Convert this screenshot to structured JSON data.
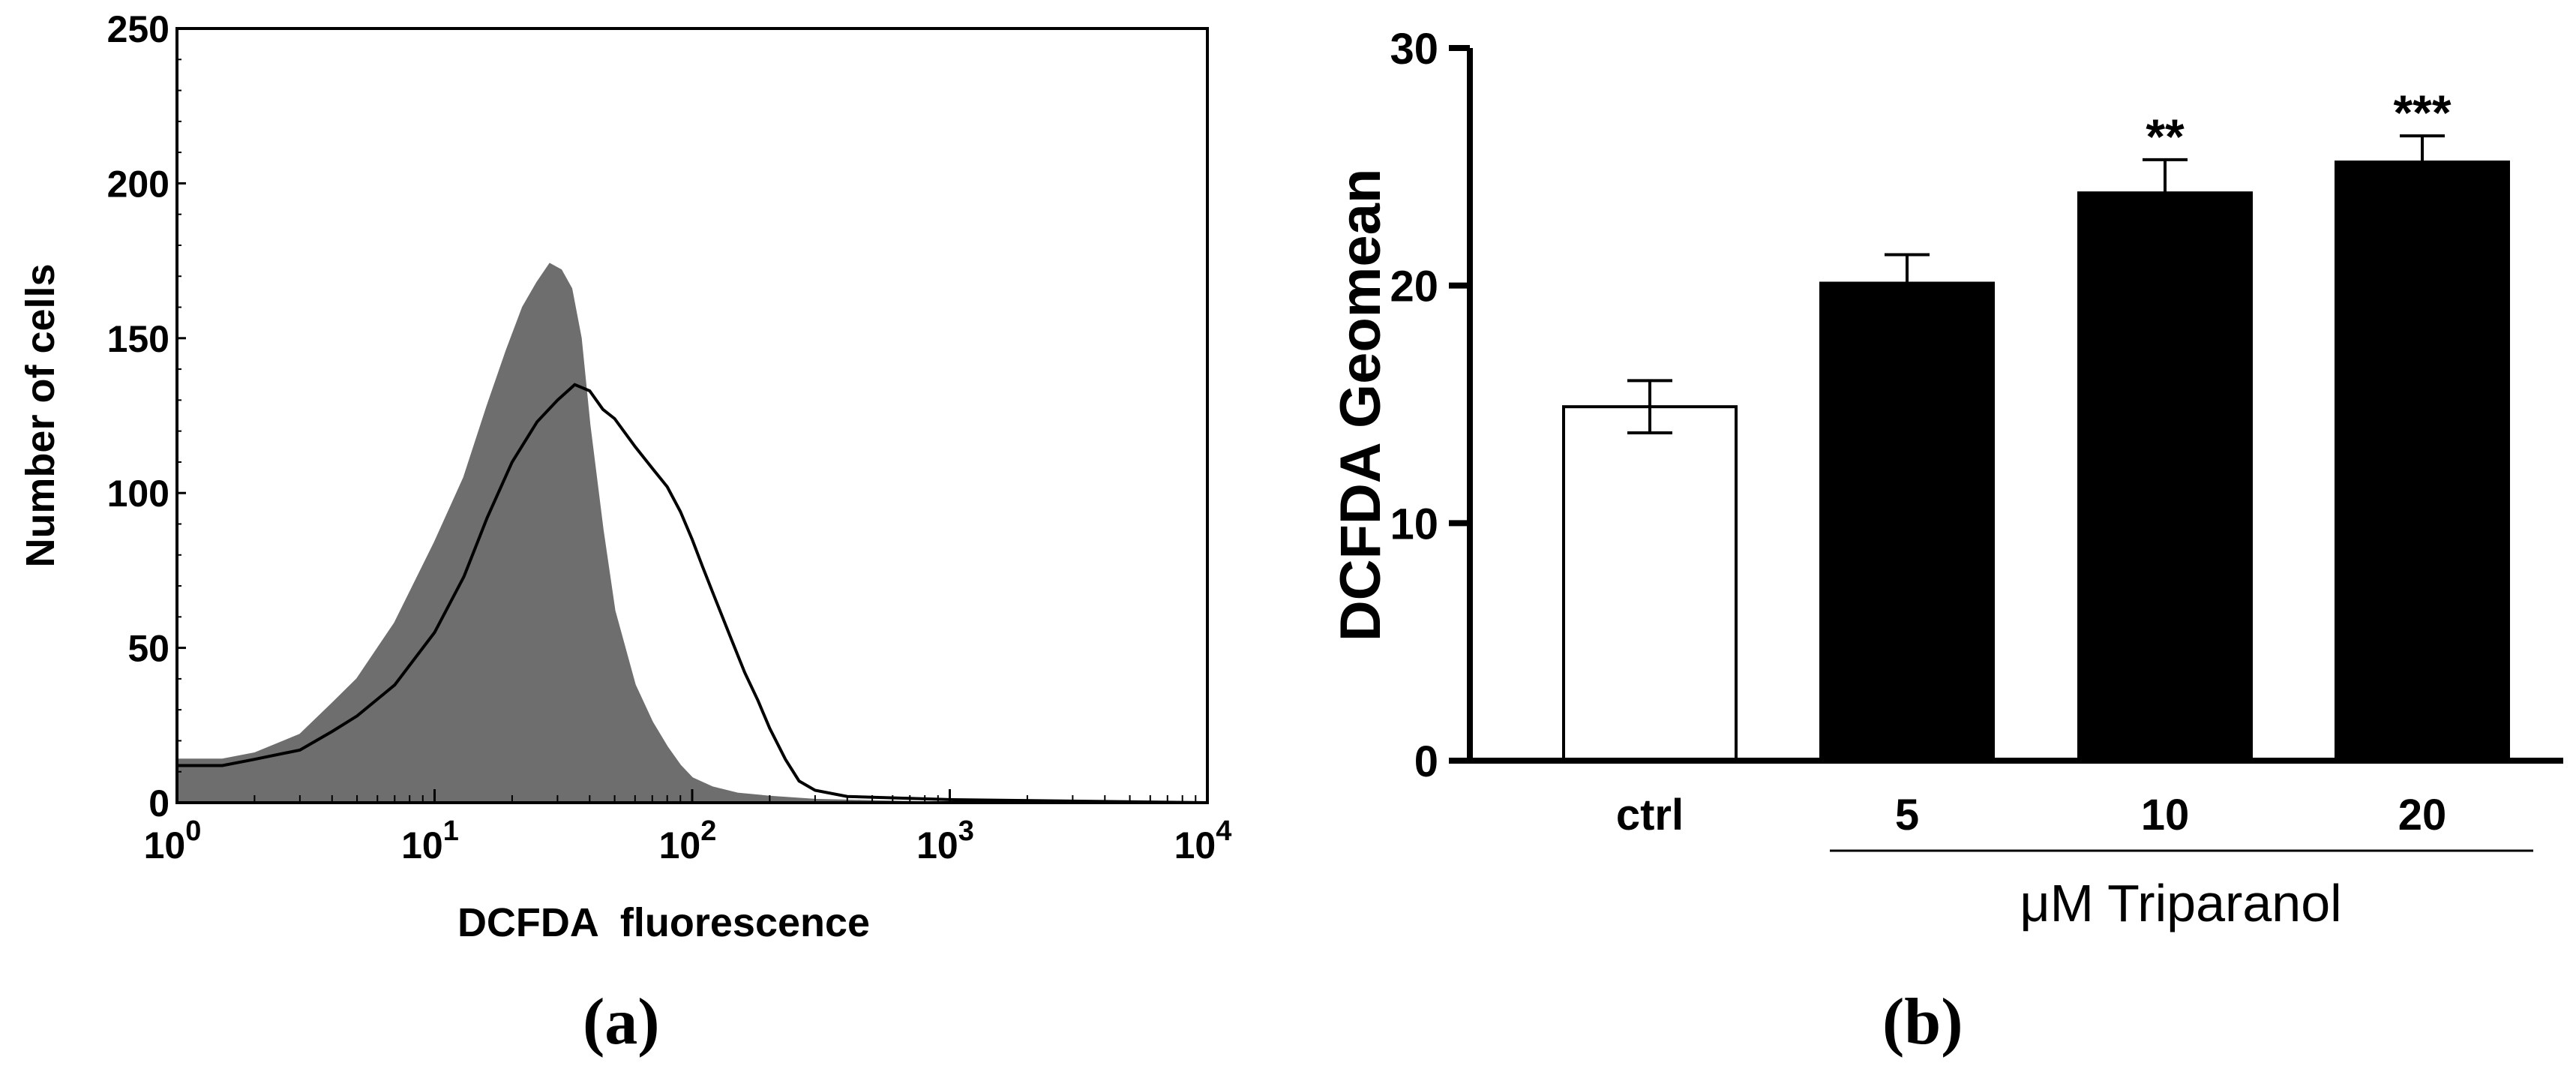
{
  "panel_a": {
    "label": "(a)",
    "xlabel": "DCFDA  fluorescence",
    "ylabel": "Number of cells",
    "yticks": [
      "0",
      "50",
      "100",
      "150",
      "200",
      "250"
    ],
    "xticks": [
      {
        "base": "10",
        "exp": "0"
      },
      {
        "base": "10",
        "exp": "1"
      },
      {
        "base": "10",
        "exp": "2"
      },
      {
        "base": "10",
        "exp": "3"
      },
      {
        "base": "10",
        "exp": "4"
      }
    ]
  },
  "panel_b": {
    "label": "(b)",
    "ylabel": "DCFDA Geomean",
    "group_label": "μM Triparanol",
    "yticks": [
      "0",
      "10",
      "20",
      "30"
    ]
  },
  "chart_data": [
    {
      "type": "area",
      "xscale": "log",
      "xlim": [
        1,
        10000
      ],
      "ylim": [
        0,
        250
      ],
      "xlabel": "DCFDA  fluorescence",
      "ylabel": "Number of cells",
      "grid": false,
      "colors": {
        "filled": "#6e6e6e",
        "outline": "#000000"
      },
      "series": [
        {
          "style": "filled gray histogram",
          "x": [
            1,
            1.5,
            2,
            3,
            4,
            5,
            7,
            10,
            13,
            16,
            19,
            22,
            25,
            28,
            31,
            34,
            37,
            40,
            45,
            50,
            60,
            70,
            80,
            90,
            100,
            120,
            150,
            200,
            300,
            1000,
            10000
          ],
          "y": [
            14,
            14,
            16,
            22,
            32,
            40,
            58,
            84,
            105,
            128,
            146,
            160,
            168,
            174,
            172,
            166,
            150,
            122,
            88,
            62,
            38,
            26,
            18,
            12,
            8,
            5,
            3,
            2,
            1,
            0,
            0
          ]
        },
        {
          "style": "black outline histogram",
          "x": [
            1,
            1.5,
            2,
            3,
            4,
            5,
            7,
            10,
            13,
            16,
            20,
            25,
            30,
            35,
            40,
            45,
            50,
            60,
            70,
            80,
            90,
            100,
            110,
            120,
            140,
            160,
            180,
            200,
            230,
            260,
            300,
            400,
            1000,
            10000
          ],
          "y": [
            12,
            12,
            14,
            17,
            23,
            28,
            38,
            55,
            73,
            92,
            110,
            123,
            130,
            135,
            133,
            127,
            124,
            115,
            108,
            102,
            94,
            85,
            76,
            68,
            54,
            42,
            33,
            24,
            14,
            7,
            4,
            2,
            1,
            0
          ]
        }
      ]
    },
    {
      "type": "bar",
      "categories": [
        "ctrl",
        "5",
        "10",
        "20"
      ],
      "values": [
        14.9,
        20.1,
        23.9,
        25.2
      ],
      "errors": [
        1.1,
        1.2,
        1.4,
        1.1
      ],
      "annotations": [
        "",
        "",
        "**",
        "***"
      ],
      "fills": [
        "#ffffff",
        "#000000",
        "#000000",
        "#000000"
      ],
      "ylabel": "DCFDA Geomean",
      "xlabel": "μM Triparanol",
      "ylim": [
        0,
        30
      ],
      "grid": false
    }
  ]
}
